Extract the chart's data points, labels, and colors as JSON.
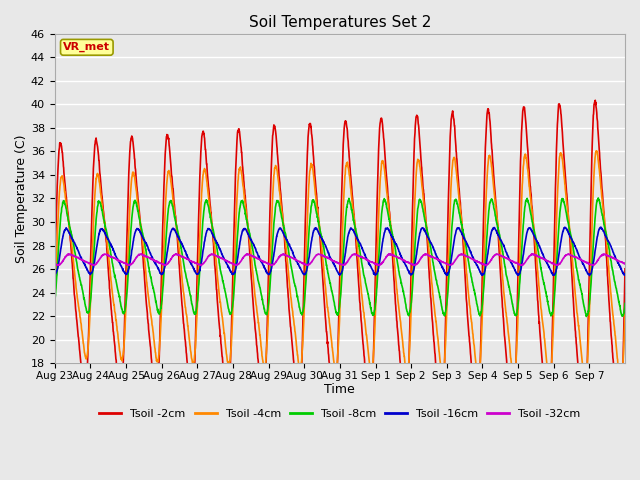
{
  "title": "Soil Temperatures Set 2",
  "xlabel": "Time",
  "ylabel": "Soil Temperature (C)",
  "ylim": [
    18,
    46
  ],
  "yticks": [
    18,
    20,
    22,
    24,
    26,
    28,
    30,
    32,
    34,
    36,
    38,
    40,
    42,
    44,
    46
  ],
  "x_labels": [
    "Aug 23",
    "Aug 24",
    "Aug 25",
    "Aug 26",
    "Aug 27",
    "Aug 28",
    "Aug 29",
    "Aug 30",
    "Aug 31",
    "Sep 1",
    "Sep 2",
    "Sep 3",
    "Sep 4",
    "Sep 5",
    "Sep 6",
    "Sep 7"
  ],
  "series": {
    "Tsoil -2cm": {
      "color": "#dd0000",
      "lw": 1.2
    },
    "Tsoil -4cm": {
      "color": "#ff8800",
      "lw": 1.2
    },
    "Tsoil -8cm": {
      "color": "#00cc00",
      "lw": 1.2
    },
    "Tsoil -16cm": {
      "color": "#0000cc",
      "lw": 1.2
    },
    "Tsoil -32cm": {
      "color": "#cc00cc",
      "lw": 1.2
    }
  },
  "annotation_text": "VR_met",
  "annotation_color": "#cc0000",
  "annotation_bg": "#ffff99",
  "annotation_border": "#999900",
  "plot_bg": "#e8e8e8",
  "grid_color": "#ffffff",
  "n_days": 16,
  "points_per_day": 144,
  "base_temp": 26.5,
  "amp_2cm": 9.5,
  "amp_4cm": 6.8,
  "amp_8cm": 4.2,
  "amp_16cm": 1.7,
  "amp_32cm": 0.4,
  "phase_2cm": 0.0,
  "phase_4cm": 0.04,
  "phase_8cm": 0.09,
  "phase_16cm": 0.16,
  "phase_32cm": 0.25,
  "sharpness": 3.5
}
